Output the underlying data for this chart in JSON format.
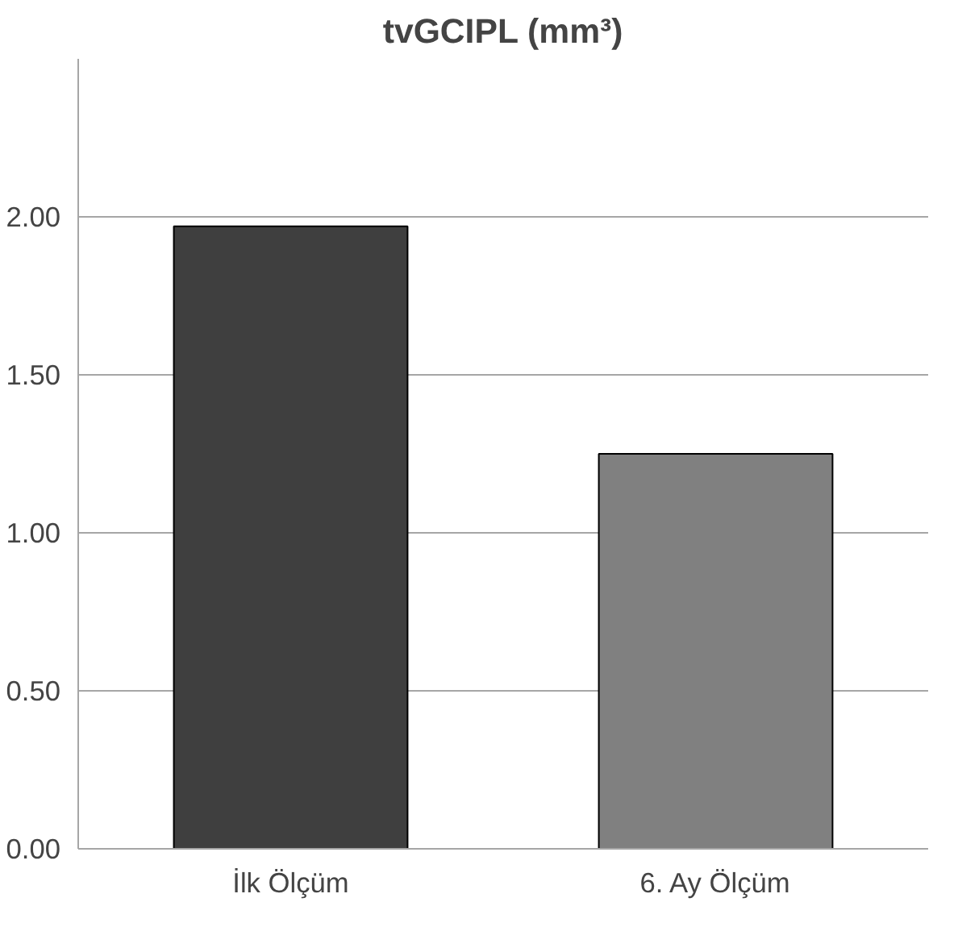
{
  "chart_data": {
    "type": "bar",
    "title": "tvGCIPL (mm³)",
    "categories": [
      "İlk Ölçüm",
      "6. Ay Ölçüm"
    ],
    "values": [
      1.97,
      1.25
    ],
    "colors": [
      "#3f3f3f",
      "#808080"
    ],
    "ylim": [
      0,
      2.5
    ],
    "yticks": [
      {
        "value": 0,
        "label": "0.00"
      },
      {
        "value": 0.5,
        "label": "0.50"
      },
      {
        "value": 1,
        "label": "1.00"
      },
      {
        "value": 1.5,
        "label": "1.50"
      },
      {
        "value": 2,
        "label": "2.00"
      }
    ],
    "grid": "y"
  }
}
